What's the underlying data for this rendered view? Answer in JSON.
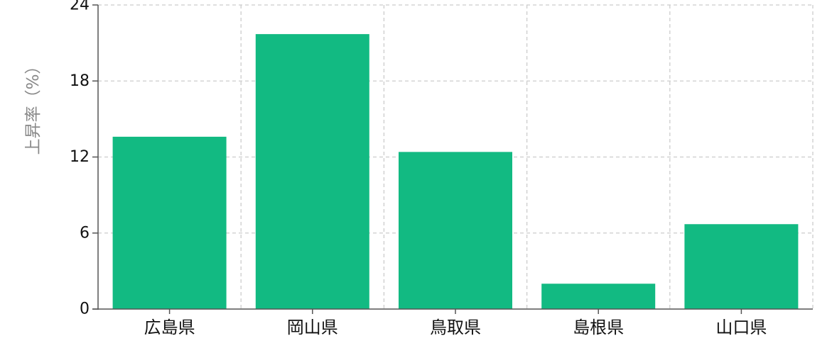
{
  "chart_data": {
    "type": "bar",
    "categories": [
      "広島県",
      "岡山県",
      "鳥取県",
      "島根県",
      "山口県"
    ],
    "values": [
      13.6,
      21.7,
      12.4,
      2.0,
      6.7
    ],
    "title": "",
    "xlabel": "",
    "ylabel": "上昇率（%）",
    "ylim": [
      0,
      24
    ],
    "yticks": [
      "0",
      "6",
      "12",
      "18",
      "24"
    ],
    "grid": true,
    "legend": "none",
    "colors": {
      "bar": "#12ba82",
      "grid": "#cccccc",
      "axis": "#555555",
      "ylabel": "#888888"
    }
  }
}
